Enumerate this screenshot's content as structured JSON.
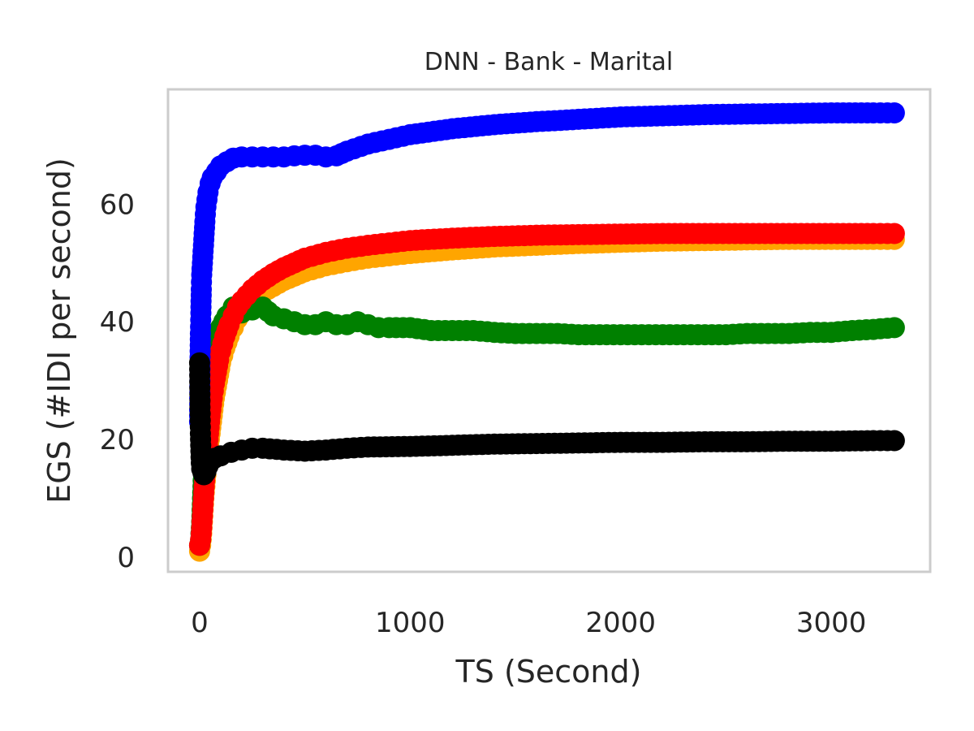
{
  "chart_data": {
    "type": "scatter",
    "title": "DNN - Bank - Marital",
    "xlabel": "TS (Second)",
    "ylabel": "EGS (#IDI  per second)",
    "xlim": [
      -150,
      3470
    ],
    "ylim": [
      -2.5,
      79.5
    ],
    "xticks": [
      0,
      1000,
      2000,
      3000
    ],
    "yticks": [
      0,
      20,
      40,
      60
    ],
    "grid": false,
    "legend": "none",
    "frame_color": "#cccccc",
    "series": [
      {
        "color": "#ffa500",
        "x": [
          0,
          5,
          10,
          15,
          20,
          30,
          40,
          50,
          60,
          70,
          80,
          90,
          100,
          120,
          140,
          160,
          180,
          200,
          250,
          300,
          350,
          400,
          500,
          600,
          700,
          800,
          900,
          1000,
          1200,
          1400,
          1600,
          1800,
          2000,
          2200,
          2400,
          2600,
          2800,
          3000,
          3200,
          3300
        ],
        "y": [
          1,
          2,
          4,
          7,
          10,
          14,
          18,
          21,
          24,
          27,
          29,
          31,
          33,
          35.5,
          37.5,
          39,
          40.5,
          41.5,
          43.5,
          45,
          46,
          47,
          48.5,
          49.5,
          50.2,
          50.8,
          51.2,
          51.6,
          52.2,
          52.7,
          53,
          53.3,
          53.5,
          53.7,
          53.8,
          53.9,
          54,
          54,
          54,
          54
        ]
      },
      {
        "color": "#008000",
        "x": [
          0,
          5,
          10,
          15,
          20,
          30,
          40,
          50,
          60,
          80,
          100,
          130,
          160,
          200,
          250,
          300,
          350,
          400,
          450,
          500,
          550,
          600,
          650,
          700,
          750,
          800,
          850,
          900,
          1000,
          1100,
          1200,
          1300,
          1400,
          1500,
          1600,
          1700,
          1800,
          1900,
          2000,
          2100,
          2200,
          2300,
          2400,
          2500,
          2600,
          2700,
          2800,
          2900,
          3000,
          3100,
          3200,
          3300
        ],
        "y": [
          2,
          3,
          6,
          11,
          16,
          22,
          27,
          31,
          34,
          37,
          39,
          41,
          42.5,
          41.5,
          42,
          42.5,
          41,
          40.5,
          40,
          39.5,
          39.5,
          40,
          39.5,
          39.5,
          40,
          39.5,
          39,
          39,
          39,
          38.5,
          38.5,
          38.5,
          38.2,
          38,
          38,
          38,
          37.8,
          37.8,
          37.8,
          37.8,
          37.8,
          37.8,
          37.8,
          37.8,
          38,
          38,
          38,
          38.2,
          38.2,
          38.5,
          38.7,
          39
        ]
      },
      {
        "color": "#ff0000",
        "x": [
          0,
          5,
          10,
          15,
          20,
          30,
          40,
          50,
          60,
          70,
          80,
          90,
          100,
          120,
          140,
          160,
          180,
          200,
          250,
          300,
          350,
          400,
          500,
          600,
          700,
          800,
          900,
          1000,
          1200,
          1400,
          1600,
          1800,
          2000,
          2200,
          2400,
          2600,
          2800,
          3000,
          3200,
          3300
        ],
        "y": [
          2,
          3,
          5,
          8,
          11,
          16,
          20,
          24,
          27,
          29.5,
          31.5,
          33.5,
          35,
          37.5,
          39.5,
          41,
          42.5,
          43.5,
          45.5,
          47,
          48.2,
          49.2,
          50.8,
          51.8,
          52.5,
          53,
          53.4,
          53.8,
          54.2,
          54.5,
          54.7,
          54.8,
          54.9,
          55,
          55,
          55,
          55,
          55,
          55,
          55
        ]
      },
      {
        "color": "#0000ff",
        "x": [
          0,
          2,
          4,
          6,
          8,
          10,
          15,
          20,
          25,
          30,
          40,
          50,
          60,
          80,
          100,
          130,
          160,
          200,
          250,
          300,
          350,
          400,
          450,
          500,
          550,
          600,
          650,
          700,
          800,
          900,
          1000,
          1200,
          1400,
          1600,
          1800,
          2000,
          2200,
          2400,
          2600,
          2800,
          3000,
          3200,
          3300
        ],
        "y": [
          23,
          33,
          38,
          41.5,
          45.5,
          48,
          51,
          54,
          57,
          59.5,
          62,
          63.5,
          64.5,
          65.5,
          66.5,
          67.2,
          67.8,
          68,
          68,
          68,
          68,
          68,
          68.2,
          68.3,
          68.3,
          68,
          68.2,
          69,
          70.2,
          71,
          71.8,
          72.8,
          73.5,
          74,
          74.4,
          74.8,
          75,
          75.2,
          75.3,
          75.4,
          75.5,
          75.5,
          75.5
        ]
      },
      {
        "color": "#000000",
        "x": [
          0,
          2,
          4,
          6,
          8,
          10,
          15,
          20,
          30,
          40,
          50,
          70,
          100,
          150,
          200,
          250,
          300,
          400,
          500,
          600,
          700,
          800,
          1000,
          1200,
          1400,
          1600,
          1800,
          2000,
          2200,
          2400,
          2600,
          2800,
          3000,
          3200,
          3300
        ],
        "y": [
          33,
          25.5,
          21,
          18,
          16,
          15,
          14.5,
          14,
          14.5,
          15.5,
          16.2,
          16.8,
          17.2,
          17.8,
          18.2,
          18.5,
          18.5,
          18.2,
          18,
          18.2,
          18.5,
          18.7,
          18.8,
          19,
          19.2,
          19.3,
          19.4,
          19.5,
          19.5,
          19.6,
          19.6,
          19.7,
          19.7,
          19.8,
          19.8
        ]
      }
    ]
  }
}
